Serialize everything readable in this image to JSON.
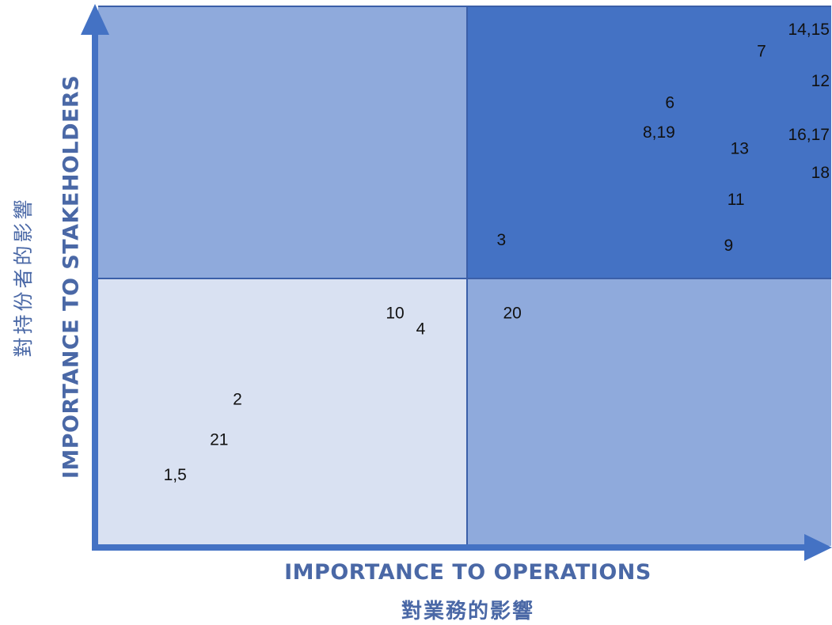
{
  "chart_data": {
    "type": "scatter",
    "xlabel": "IMPORTANCE TO OPERATIONS",
    "xlabel_sub": "對業務的影響",
    "ylabel": "IMPORTANCE TO STAKEHOLDERS",
    "ylabel_sub": "對持份者的影響",
    "xlim": [
      0,
      100
    ],
    "ylim": [
      0,
      100
    ],
    "midpoint": [
      50,
      50
    ],
    "quadrant_colors": {
      "low_low": "#d9e1f2",
      "high_low": "#8faadc",
      "low_high": "#8faadc",
      "high_high": "#4472c4"
    },
    "axis_color": "#4472c4",
    "grid": false,
    "points": [
      {
        "label": "14,15",
        "x": 99.5,
        "y": 95.5
      },
      {
        "label": "7",
        "x": 90.5,
        "y": 91.5
      },
      {
        "label": "12",
        "x": 98.5,
        "y": 86
      },
      {
        "label": "6",
        "x": 78,
        "y": 82
      },
      {
        "label": "8,19",
        "x": 76.5,
        "y": 76.5
      },
      {
        "label": "16,17",
        "x": 99,
        "y": 76
      },
      {
        "label": "13",
        "x": 87.5,
        "y": 73.5
      },
      {
        "label": "18",
        "x": 97.5,
        "y": 69
      },
      {
        "label": "11",
        "x": 87,
        "y": 64
      },
      {
        "label": "3",
        "x": 55,
        "y": 56.5
      },
      {
        "label": "9",
        "x": 86,
        "y": 55.5
      },
      {
        "label": "10",
        "x": 40.5,
        "y": 43
      },
      {
        "label": "20",
        "x": 56.5,
        "y": 43
      },
      {
        "label": "4",
        "x": 44,
        "y": 40
      },
      {
        "label": "2",
        "x": 19,
        "y": 27
      },
      {
        "label": "21",
        "x": 16.5,
        "y": 19.5
      },
      {
        "label": "1,5",
        "x": 10.5,
        "y": 13
      }
    ]
  }
}
